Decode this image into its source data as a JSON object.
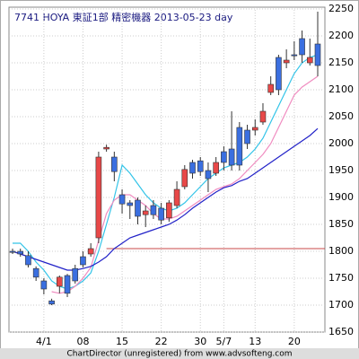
{
  "chart_data": {
    "type": "candlestick",
    "title": "7741 HOYA 東証1部 精密機器 2013-05-23 day",
    "footer": "ChartDirector (unregistered) from www.advsofteng.com",
    "categories": [
      null,
      null,
      null,
      null,
      "4/1",
      null,
      null,
      null,
      null,
      "08",
      null,
      null,
      null,
      null,
      "15",
      null,
      null,
      null,
      null,
      "22",
      null,
      null,
      null,
      null,
      "30",
      null,
      null,
      "5/7",
      null,
      null,
      null,
      "13",
      null,
      null,
      null,
      null,
      "20",
      null,
      null,
      null
    ],
    "open": [
      1800,
      1800,
      1792,
      1768,
      1745,
      1708,
      1735,
      1755,
      1768,
      1790,
      1795,
      1825,
      1990,
      1975,
      1905,
      1890,
      1895,
      1868,
      1885,
      1880,
      1862,
      1885,
      1920,
      1965,
      1968,
      1950,
      1945,
      1985,
      1990,
      2030,
      2025,
      2025,
      2040,
      2095,
      2160,
      2150,
      2165,
      2195,
      2150,
      2185
    ],
    "high": [
      1805,
      1805,
      1800,
      1772,
      1750,
      1712,
      1755,
      1758,
      1775,
      1800,
      1815,
      1985,
      1998,
      1985,
      1915,
      1895,
      1900,
      1885,
      1895,
      1890,
      1895,
      1930,
      1960,
      1970,
      1975,
      1965,
      1975,
      1995,
      2060,
      2040,
      2035,
      2045,
      2075,
      2125,
      2165,
      2175,
      2190,
      2210,
      2195,
      2245
    ],
    "low": [
      1795,
      1790,
      1770,
      1745,
      1720,
      1700,
      1722,
      1715,
      1740,
      1770,
      1790,
      1815,
      1985,
      1930,
      1870,
      1860,
      1850,
      1845,
      1860,
      1850,
      1855,
      1880,
      1915,
      1935,
      1940,
      1910,
      1940,
      1950,
      1950,
      1950,
      1990,
      2015,
      2035,
      2090,
      2090,
      2140,
      2155,
      2150,
      2145,
      2125
    ],
    "close": [
      1798,
      1795,
      1775,
      1752,
      1730,
      1702,
      1752,
      1722,
      1745,
      1775,
      1805,
      1975,
      1993,
      1948,
      1888,
      1885,
      1865,
      1875,
      1868,
      1858,
      1890,
      1915,
      1952,
      1945,
      1948,
      1935,
      1965,
      1965,
      1960,
      1960,
      2000,
      2030,
      2060,
      2110,
      2100,
      2155,
      2163,
      2165,
      2160,
      2145
    ],
    "up_color": "#e84848",
    "down_color": "#3b6fe0",
    "series": [
      {
        "color": "#33c4e8",
        "values": [
          1815,
          1815,
          1800,
          1780,
          1765,
          1745,
          1735,
          1730,
          1735,
          1745,
          1760,
          1800,
          1850,
          1900,
          1960,
          1945,
          1925,
          1905,
          1890,
          1880,
          1875,
          1880,
          1890,
          1905,
          1920,
          1935,
          1945,
          1955,
          1960,
          1965,
          1975,
          1990,
          2010,
          2040,
          2070,
          2100,
          2130,
          2150,
          2160,
          2165
        ]
      },
      {
        "color": "#f08cc0",
        "values": [
          null,
          null,
          null,
          null,
          null,
          1725,
          1722,
          1725,
          1735,
          1750,
          1770,
          1820,
          1870,
          1895,
          1905,
          1905,
          1895,
          1885,
          1870,
          1860,
          1860,
          1865,
          1875,
          1885,
          1895,
          1905,
          1915,
          1920,
          1925,
          1935,
          1950,
          1965,
          1980,
          2000,
          2030,
          2060,
          2090,
          2105,
          2115,
          2125
        ]
      },
      {
        "color": "#2222c8",
        "values": [
          1800,
          1795,
          1790,
          1785,
          1780,
          1775,
          1770,
          1765,
          1765,
          1768,
          1772,
          1780,
          1790,
          1805,
          1815,
          1825,
          1830,
          1835,
          1840,
          1845,
          1850,
          1858,
          1868,
          1880,
          1890,
          1900,
          1910,
          1918,
          1922,
          1930,
          1935,
          1945,
          1955,
          1965,
          1975,
          1985,
          1995,
          2005,
          2015,
          2028
        ]
      }
    ],
    "hline": {
      "value": 1805,
      "color": "#c84848"
    },
    "ylim": [
      1650,
      2250
    ],
    "yticks": [
      1650,
      1700,
      1750,
      1800,
      1850,
      1900,
      1950,
      2000,
      2050,
      2100,
      2150,
      2200,
      2250
    ],
    "grid": true
  }
}
